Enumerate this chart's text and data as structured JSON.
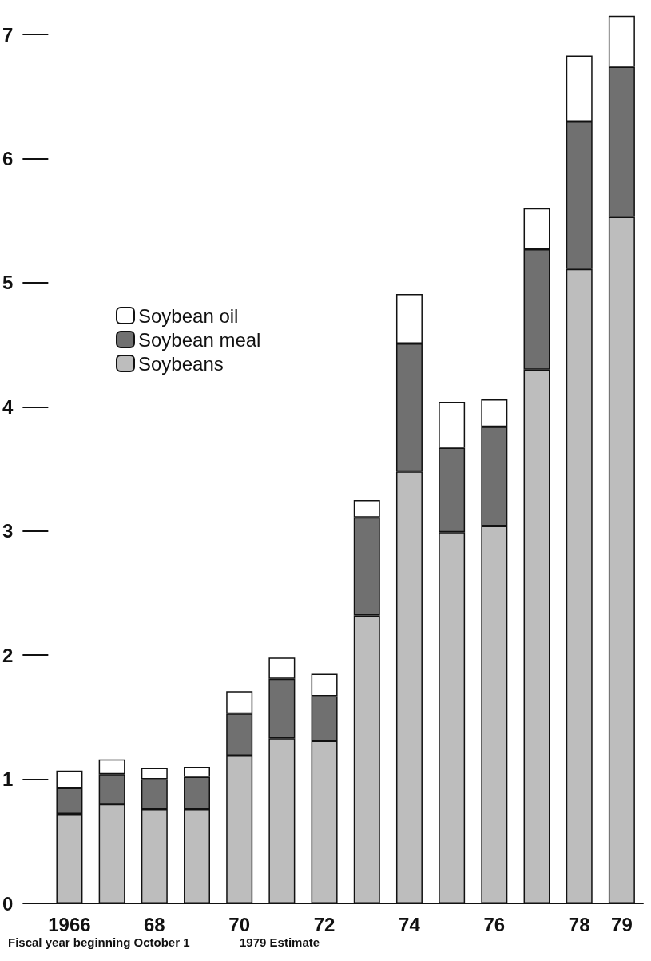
{
  "chart_data": {
    "type": "bar",
    "stacked": true,
    "categories": [
      "1966",
      null,
      "68",
      null,
      "70",
      null,
      "72",
      null,
      "74",
      null,
      "76",
      null,
      "78",
      "79"
    ],
    "series": [
      {
        "name": "Soybeans",
        "color": "#bdbdbd",
        "values": [
          0.72,
          0.8,
          0.76,
          0.76,
          1.19,
          1.33,
          1.31,
          2.32,
          3.48,
          2.99,
          3.04,
          4.3,
          5.11,
          5.53
        ]
      },
      {
        "name": "Soybean meal",
        "color": "#707070",
        "values": [
          0.21,
          0.24,
          0.24,
          0.26,
          0.34,
          0.48,
          0.36,
          0.79,
          1.03,
          0.68,
          0.8,
          0.97,
          1.19,
          1.21
        ]
      },
      {
        "name": "Soybean oil",
        "color": "#ffffff",
        "values": [
          0.14,
          0.12,
          0.09,
          0.08,
          0.18,
          0.17,
          0.18,
          0.14,
          0.4,
          0.37,
          0.22,
          0.33,
          0.53,
          0.41
        ]
      }
    ],
    "ylim": [
      0,
      7.2
    ],
    "yticks": [
      0,
      1,
      2,
      3,
      4,
      5,
      6,
      7
    ],
    "grid": false,
    "legend": "left",
    "annotations": [
      "Fiscal year beginning October 1",
      "1979 Estimate"
    ]
  }
}
